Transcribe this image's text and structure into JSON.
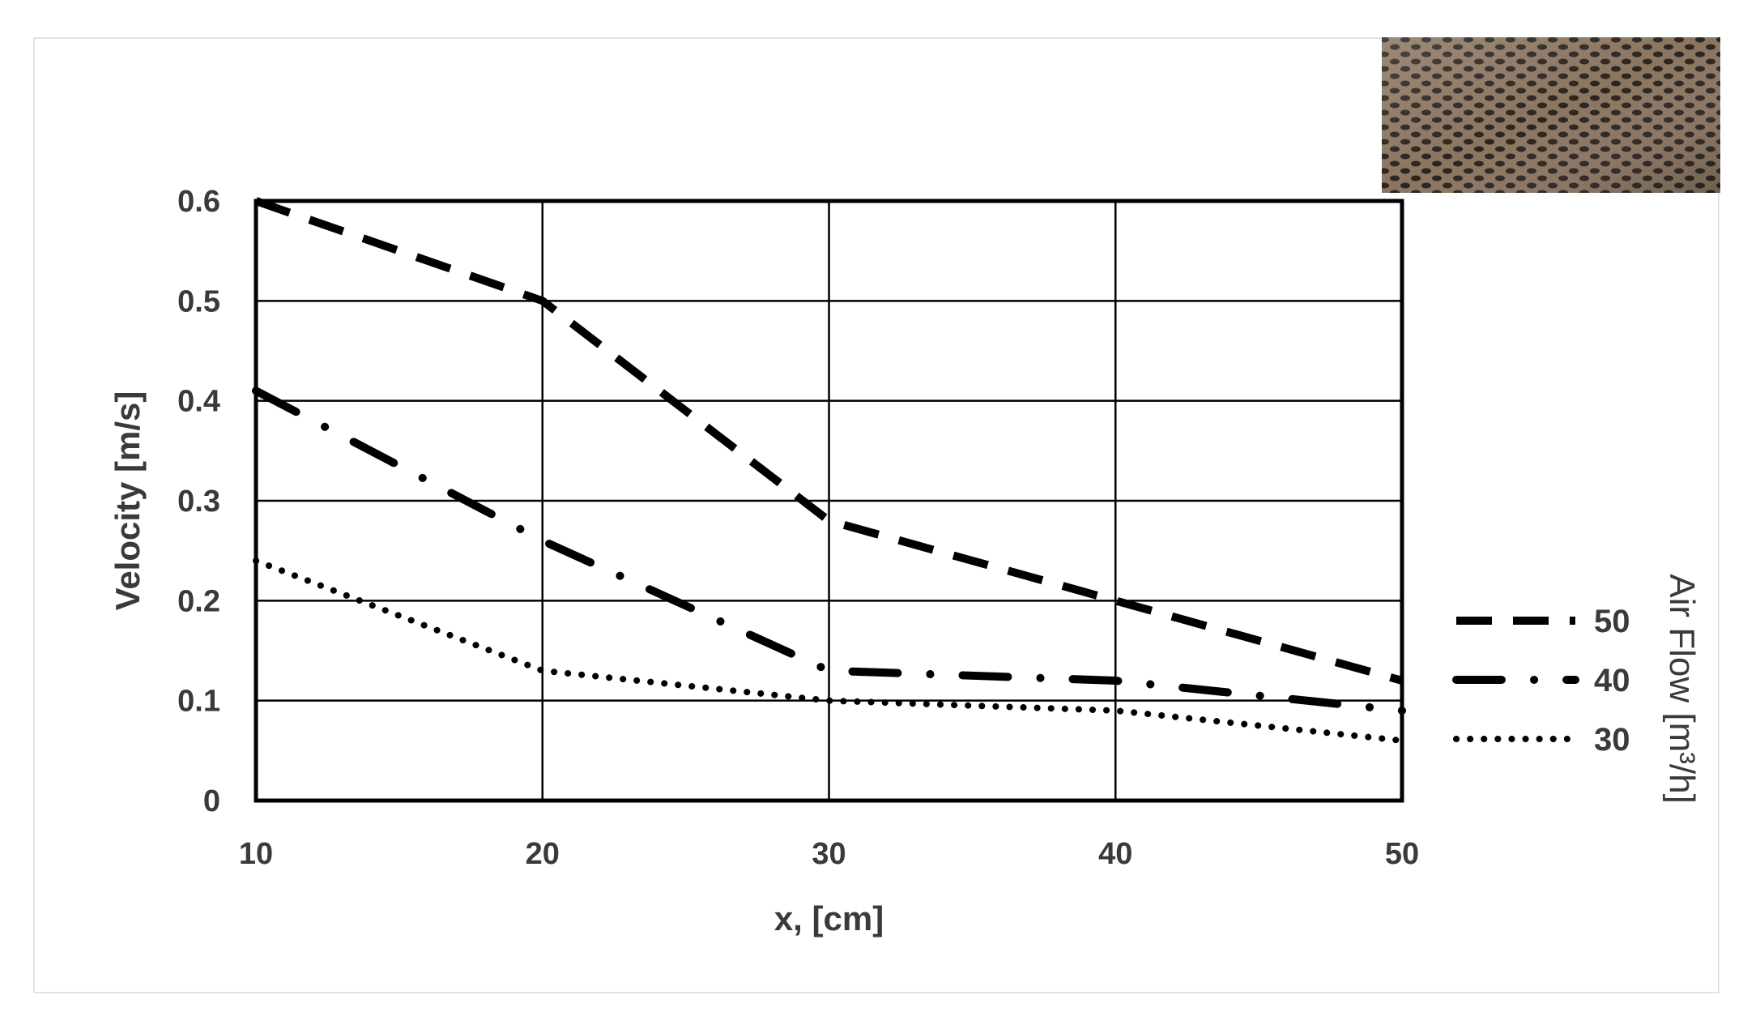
{
  "chart_data": {
    "type": "line",
    "xlabel": "x, [cm]",
    "ylabel": "Velocity [m/s]",
    "x": [
      10,
      20,
      30,
      40,
      50
    ],
    "xlim": [
      10,
      50
    ],
    "ylim": [
      0,
      0.6
    ],
    "x_ticks": [
      "10",
      "20",
      "30",
      "40",
      "50"
    ],
    "y_ticks": [
      "0",
      "0.1",
      "0.2",
      "0.3",
      "0.4",
      "0.5",
      "0.6"
    ],
    "grid": true,
    "legend_title": "Air Flow  [m³/h]",
    "legend_position": "right",
    "series": [
      {
        "name": "50",
        "values": [
          0.6,
          0.5,
          0.28,
          0.2,
          0.12
        ],
        "style": "dashed",
        "color": "#000000"
      },
      {
        "name": "40",
        "values": [
          0.41,
          0.26,
          0.13,
          0.12,
          0.09
        ],
        "style": "dash-dot",
        "color": "#000000"
      },
      {
        "name": "30",
        "values": [
          0.24,
          0.13,
          0.1,
          0.09,
          0.06
        ],
        "style": "dotted",
        "color": "#000000"
      }
    ]
  },
  "inset_image": {
    "subject": "perforated-metal-sheet-photo"
  }
}
